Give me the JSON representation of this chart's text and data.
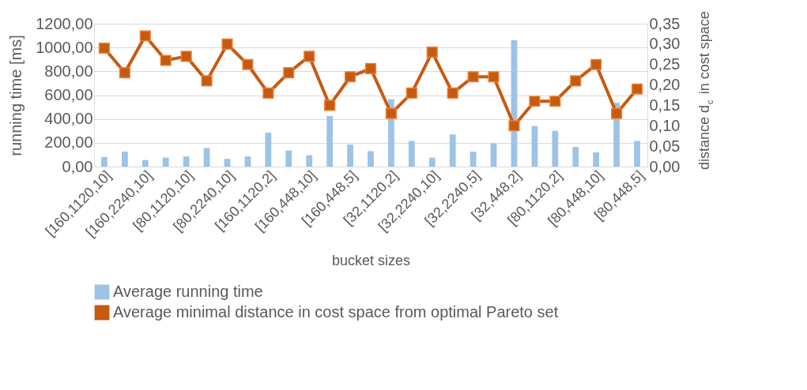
{
  "chart_data": {
    "type": "bar",
    "categories": [
      "[160,1120,10]",
      null,
      "[160,2240,10]",
      null,
      "[80,1120,10]",
      null,
      "[80,2240,10]",
      null,
      "[160,1120,2]",
      null,
      "[160,448,10]",
      null,
      "[160,448,5]",
      null,
      "[32,1120,2]",
      null,
      "[32,2240,10]",
      null,
      "[32,2240,5]",
      null,
      "[32,448,2]",
      null,
      "[80,1120,2]",
      null,
      "[80,448,10]",
      null,
      "[80,448,5]"
    ],
    "series": [
      {
        "name": "Average running time",
        "color": "#9dc3e6",
        "values": [
          80,
          125,
          55,
          75,
          85,
          155,
          65,
          85,
          285,
          135,
          95,
          425,
          185,
          130,
          565,
          215,
          75,
          270,
          125,
          195,
          1060,
          340,
          300,
          165,
          120,
          535,
          215
        ]
      },
      {
        "name": "Average minimal distance in cost space from optimal Pareto set",
        "type": "line",
        "axis": "y2",
        "color": "#c55a11",
        "values": [
          0.29,
          0.23,
          0.32,
          0.26,
          0.27,
          0.21,
          0.3,
          0.25,
          0.18,
          0.23,
          0.27,
          0.15,
          0.22,
          0.24,
          0.13,
          0.18,
          0.28,
          0.18,
          0.22,
          0.22,
          0.1,
          0.16,
          0.16,
          0.21,
          0.25,
          0.13,
          0.19
        ]
      }
    ],
    "xlabel": "bucket sizes",
    "ylabel": "running time [ms]",
    "y2label": "distance d$_{c}$ in cost space",
    "ylim": [
      0,
      1200
    ],
    "yticks": [
      {
        "value": 0,
        "label": "0,00"
      },
      {
        "value": 200,
        "label": "200,00"
      },
      {
        "value": 400,
        "label": "400,00"
      },
      {
        "value": 600,
        "label": "600,00"
      },
      {
        "value": 800,
        "label": "800,00"
      },
      {
        "value": 1000,
        "label": "1000,00"
      },
      {
        "value": 1200,
        "label": "1200,00"
      }
    ],
    "y2lim": [
      0,
      0.35
    ],
    "y2ticks": [
      {
        "value": 0,
        "label": "0,00"
      },
      {
        "value": 0.05,
        "label": "0,05"
      },
      {
        "value": 0.1,
        "label": "0,10"
      },
      {
        "value": 0.15,
        "label": "0,15"
      },
      {
        "value": 0.2,
        "label": "0,20"
      },
      {
        "value": 0.25,
        "label": "0,25"
      },
      {
        "value": 0.3,
        "label": "0,30"
      },
      {
        "value": 0.35,
        "label": "0,35"
      }
    ],
    "grid": "y",
    "legend": "bottom",
    "marker": "square",
    "line_style": "solid"
  }
}
